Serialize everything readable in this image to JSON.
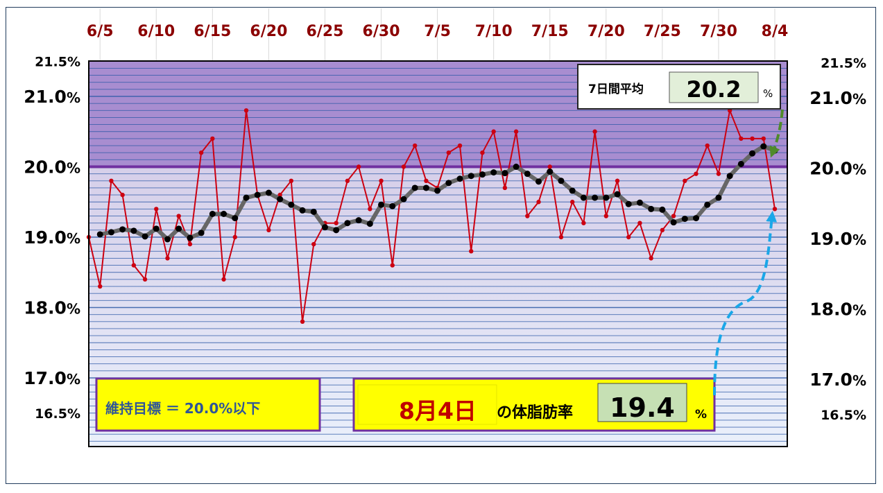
{
  "chart_data": {
    "type": "line",
    "x": [
      "6/4",
      "6/5",
      "6/6",
      "6/7",
      "6/8",
      "6/9",
      "6/10",
      "6/11",
      "6/12",
      "6/13",
      "6/14",
      "6/15",
      "6/16",
      "6/17",
      "6/18",
      "6/19",
      "6/20",
      "6/21",
      "6/22",
      "6/23",
      "6/24",
      "6/25",
      "6/26",
      "6/27",
      "6/28",
      "6/29",
      "6/30",
      "7/1",
      "7/2",
      "7/3",
      "7/4",
      "7/5",
      "7/6",
      "7/7",
      "7/8",
      "7/9",
      "7/10",
      "7/11",
      "7/12",
      "7/13",
      "7/14",
      "7/15",
      "7/16",
      "7/17",
      "7/18",
      "7/19",
      "7/20",
      "7/21",
      "7/22",
      "7/23",
      "7/24",
      "7/25",
      "7/26",
      "7/27",
      "7/28",
      "7/29",
      "7/30",
      "7/31",
      "8/1",
      "8/2",
      "8/3",
      "8/4"
    ],
    "x_tick_labels": [
      "6/5",
      "6/10",
      "6/15",
      "6/20",
      "6/25",
      "6/30",
      "7/5",
      "7/10",
      "7/15",
      "7/20",
      "7/25",
      "7/30",
      "8/4"
    ],
    "y_tick_labels": [
      {
        "value": 21.5,
        "major": "21.5",
        "unit": "%"
      },
      {
        "value": 21.0,
        "major": "21.0",
        "unit": "%"
      },
      {
        "value": 20.0,
        "major": "20.0",
        "unit": "%"
      },
      {
        "value": 19.0,
        "major": "19.0",
        "unit": "%"
      },
      {
        "value": 18.0,
        "major": "18.0",
        "unit": "%"
      },
      {
        "value": 17.0,
        "major": "17.0",
        "unit": "%"
      },
      {
        "value": 16.5,
        "major": "16.5",
        "unit": "%"
      }
    ],
    "ylim": [
      16.5,
      21.5
    ],
    "target_line": 20.0,
    "series": [
      {
        "color": "#cc0011",
        "values": [
          19.0,
          18.3,
          19.8,
          19.6,
          18.6,
          18.4,
          19.4,
          18.7,
          19.3,
          18.9,
          20.2,
          20.4,
          18.4,
          19.0,
          20.8,
          19.6,
          19.1,
          19.6,
          19.8,
          17.8,
          18.9,
          19.2,
          19.2,
          19.8,
          20.0,
          19.4,
          19.8,
          18.6,
          20.0,
          20.3,
          19.8,
          19.7,
          20.2,
          20.3,
          18.8,
          20.2,
          20.5,
          19.7,
          20.5,
          19.3,
          19.5,
          20.0,
          19.0,
          19.5,
          19.2,
          20.5,
          19.3,
          19.8,
          19.0,
          19.2,
          18.7,
          19.1,
          19.3,
          19.8,
          19.9,
          20.3,
          19.9,
          20.8,
          20.4,
          20.4,
          20.4,
          19.4
        ]
      },
      {
        "color": "#666666",
        "marker_color": "#000000",
        "values": [
          null,
          19.04,
          19.07,
          19.11,
          19.09,
          19.01,
          19.12,
          18.97,
          19.12,
          18.99,
          19.06,
          19.33,
          19.33,
          19.27,
          19.56,
          19.6,
          19.63,
          19.54,
          19.46,
          19.38,
          19.36,
          19.14,
          19.1,
          19.2,
          19.24,
          19.19,
          19.46,
          19.44,
          19.54,
          19.7,
          19.7,
          19.66,
          19.77,
          19.83,
          19.87,
          19.89,
          19.92,
          19.91,
          20.0,
          19.9,
          19.79,
          19.93,
          19.8,
          19.66,
          19.56,
          19.56,
          19.56,
          19.61,
          19.47,
          19.49,
          19.4,
          19.39,
          19.21,
          19.26,
          19.27,
          19.46,
          19.56,
          19.87,
          20.04,
          20.19,
          20.29,
          20.23
        ]
      }
    ]
  },
  "avg_box": {
    "label": "7日間平均",
    "value": "20.2",
    "unit": "%"
  },
  "target_box": {
    "text": "維持目標 ＝ 20.0%以下"
  },
  "today_box": {
    "date": "8月4日",
    "suffix": "の体脂肪率",
    "value": "19.4",
    "unit": "%"
  },
  "colors": {
    "above_target_band": "#a88dd0",
    "below_target_top": "#d6cfe9",
    "below_target_bottom": "#eaf0fb",
    "grid_line": "#2e5aa8",
    "target_line": "#7030a0",
    "box_yellow": "#ffff00",
    "box_value_bg": "#c6e0b4",
    "date_red": "#c00000"
  }
}
